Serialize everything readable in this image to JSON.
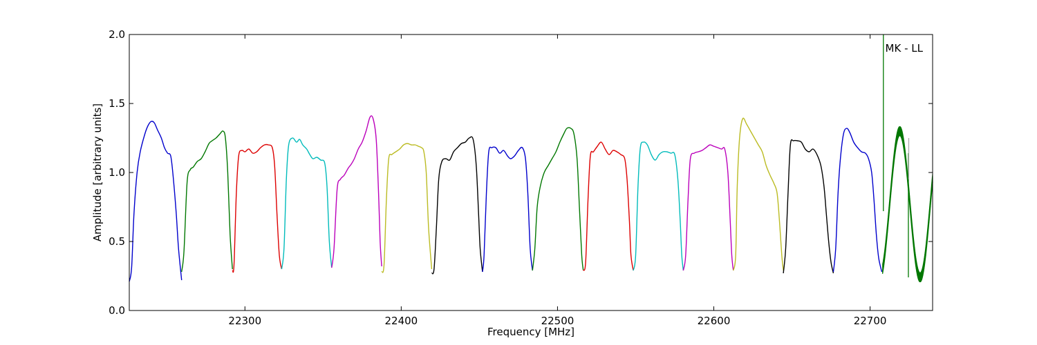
{
  "chart_data": {
    "type": "line",
    "title": "",
    "xlabel": "Frequency [MHz]",
    "ylabel": "Amplitude [arbitrary units]",
    "xlim": [
      22226,
      22740
    ],
    "ylim": [
      0.0,
      2.0
    ],
    "x_ticks": [
      "22300",
      "22400",
      "22500",
      "22600",
      "22700"
    ],
    "x_tick_values": [
      22300,
      22400,
      22500,
      22600,
      22700
    ],
    "y_ticks": [
      "0.0",
      "0.5",
      "1.0",
      "1.5",
      "2.0"
    ],
    "y_tick_values": [
      0.0,
      0.5,
      1.0,
      1.5,
      2.0
    ],
    "annotation": "MK - LL",
    "grid": false,
    "legend": "none",
    "series": [
      {
        "color": "#0000cc",
        "x": [
          22226.0,
          22227.5,
          22229.0,
          22231.0,
          22233.0,
          22236.0,
          22238.0,
          22240.0,
          22242.0,
          22244.0,
          22246.5,
          22248.5,
          22250.5,
          22252.5,
          22254.0,
          22256.0,
          22257.5,
          22259.5
        ],
        "y": [
          0.21,
          0.31,
          0.7,
          1.0,
          1.15,
          1.28,
          1.34,
          1.37,
          1.36,
          1.31,
          1.25,
          1.18,
          1.14,
          1.12,
          0.98,
          0.71,
          0.45,
          0.22
        ]
      },
      {
        "color": "#007700",
        "x": [
          22259.5,
          22261.0,
          22263.0,
          22265.0,
          22267.0,
          22269.5,
          22272.0,
          22274.5,
          22277.0,
          22279.0,
          22281.5,
          22284.0,
          22286.0,
          22287.5,
          22289.0,
          22290.5,
          22292.0
        ],
        "y": [
          0.28,
          0.43,
          0.93,
          1.02,
          1.04,
          1.08,
          1.1,
          1.15,
          1.21,
          1.23,
          1.25,
          1.28,
          1.3,
          1.25,
          1.0,
          0.55,
          0.3
        ]
      },
      {
        "color": "#dd0000",
        "x": [
          22292.0,
          22293.0,
          22294.5,
          22296.0,
          22298.0,
          22300.0,
          22302.5,
          22305.0,
          22307.5,
          22310.0,
          22312.5,
          22315.0,
          22317.5,
          22319.0,
          22320.5,
          22322.0,
          22323.5
        ],
        "y": [
          0.29,
          0.33,
          0.85,
          1.12,
          1.16,
          1.15,
          1.17,
          1.14,
          1.15,
          1.18,
          1.2,
          1.2,
          1.18,
          1.05,
          0.7,
          0.4,
          0.3
        ]
      },
      {
        "color": "#00bbbb",
        "x": [
          22323.5,
          22325.0,
          22326.5,
          22328.0,
          22330.5,
          22333.0,
          22335.0,
          22337.0,
          22339.5,
          22341.5,
          22343.5,
          22346.0,
          22348.5,
          22351.0,
          22352.5,
          22354.0,
          22355.5
        ],
        "y": [
          0.3,
          0.45,
          0.95,
          1.2,
          1.25,
          1.22,
          1.24,
          1.2,
          1.17,
          1.13,
          1.1,
          1.11,
          1.09,
          1.07,
          0.9,
          0.5,
          0.31
        ]
      },
      {
        "color": "#bb00bb",
        "x": [
          22355.5,
          22357.0,
          22359.0,
          22361.0,
          22363.5,
          22366.0,
          22368.0,
          22370.0,
          22372.5,
          22375.0,
          22377.5,
          22380.0,
          22382.0,
          22384.0,
          22385.5,
          22386.5,
          22387.5
        ],
        "y": [
          0.31,
          0.45,
          0.88,
          0.95,
          0.98,
          1.03,
          1.06,
          1.1,
          1.17,
          1.22,
          1.3,
          1.4,
          1.39,
          1.24,
          0.85,
          0.5,
          0.32
        ]
      },
      {
        "color": "#bbbb22",
        "x": [
          22387.5,
          22389.0,
          22390.5,
          22392.0,
          22394.0,
          22396.5,
          22399.0,
          22401.5,
          22404.0,
          22406.5,
          22409.0,
          22411.0,
          22413.0,
          22414.5,
          22416.0,
          22417.5,
          22419.5
        ],
        "y": [
          0.28,
          0.33,
          0.8,
          1.1,
          1.13,
          1.15,
          1.17,
          1.2,
          1.21,
          1.2,
          1.2,
          1.19,
          1.18,
          1.15,
          1.0,
          0.6,
          0.3
        ]
      },
      {
        "color": "#000000",
        "x": [
          22419.5,
          22421.0,
          22422.5,
          22424.0,
          22426.0,
          22428.5,
          22431.0,
          22433.5,
          22436.0,
          22438.5,
          22441.0,
          22443.5,
          22446.0,
          22448.0,
          22449.5,
          22450.5,
          22452.0
        ],
        "y": [
          0.27,
          0.3,
          0.6,
          0.95,
          1.08,
          1.1,
          1.09,
          1.15,
          1.18,
          1.21,
          1.22,
          1.25,
          1.24,
          1.05,
          0.7,
          0.45,
          0.28
        ]
      },
      {
        "color": "#0000cc",
        "x": [
          22452.0,
          22453.0,
          22454.5,
          22456.0,
          22458.0,
          22460.5,
          22463.0,
          22465.5,
          22468.0,
          22470.0,
          22472.5,
          22475.0,
          22477.5,
          22479.5,
          22481.0,
          22482.5,
          22484.0
        ],
        "y": [
          0.28,
          0.4,
          0.85,
          1.15,
          1.18,
          1.18,
          1.14,
          1.16,
          1.12,
          1.1,
          1.12,
          1.16,
          1.18,
          1.1,
          0.85,
          0.45,
          0.29
        ]
      },
      {
        "color": "#007700",
        "x": [
          22484.0,
          22485.5,
          22487.0,
          22489.0,
          22491.5,
          22494.0,
          22496.5,
          22499.0,
          22501.5,
          22504.0,
          22506.0,
          22508.5,
          22510.5,
          22512.5,
          22514.0,
          22515.5,
          22516.5
        ],
        "y": [
          0.29,
          0.45,
          0.75,
          0.9,
          1.0,
          1.05,
          1.1,
          1.15,
          1.22,
          1.28,
          1.32,
          1.32,
          1.28,
          1.1,
          0.75,
          0.4,
          0.29
        ]
      },
      {
        "color": "#dd0000",
        "x": [
          22516.5,
          22518.0,
          22519.5,
          22521.0,
          22523.0,
          22525.5,
          22528.0,
          22530.5,
          22533.0,
          22535.5,
          22538.0,
          22540.5,
          22543.0,
          22544.5,
          22546.0,
          22547.0,
          22548.5
        ],
        "y": [
          0.29,
          0.35,
          0.8,
          1.12,
          1.15,
          1.19,
          1.22,
          1.17,
          1.13,
          1.16,
          1.15,
          1.13,
          1.1,
          0.95,
          0.65,
          0.4,
          0.29
        ]
      },
      {
        "color": "#00bbbb",
        "x": [
          22548.5,
          22550.0,
          22551.5,
          22553.0,
          22555.0,
          22557.5,
          22560.0,
          22562.5,
          22565.0,
          22567.5,
          22570.0,
          22572.5,
          22575.0,
          22577.0,
          22578.5,
          22579.5,
          22580.5
        ],
        "y": [
          0.29,
          0.4,
          0.9,
          1.18,
          1.22,
          1.2,
          1.13,
          1.09,
          1.13,
          1.15,
          1.15,
          1.14,
          1.13,
          0.95,
          0.65,
          0.4,
          0.29
        ]
      },
      {
        "color": "#bb00bb",
        "x": [
          22580.5,
          22582.0,
          22583.5,
          22585.0,
          22587.5,
          22590.0,
          22592.5,
          22595.0,
          22597.5,
          22600.0,
          22602.5,
          22605.0,
          22607.0,
          22609.0,
          22610.5,
          22611.5,
          22612.5
        ],
        "y": [
          0.29,
          0.4,
          0.8,
          1.1,
          1.14,
          1.15,
          1.16,
          1.18,
          1.2,
          1.19,
          1.18,
          1.17,
          1.17,
          1.0,
          0.65,
          0.4,
          0.29
        ]
      },
      {
        "color": "#bbbb22",
        "x": [
          22612.5,
          22614.0,
          22615.0,
          22616.5,
          22618.5,
          22621.0,
          22623.5,
          22626.0,
          22628.5,
          22631.0,
          22633.5,
          22636.0,
          22638.5,
          22640.5,
          22642.0,
          22643.5,
          22644.5
        ],
        "y": [
          0.29,
          0.4,
          0.9,
          1.25,
          1.39,
          1.35,
          1.3,
          1.25,
          1.2,
          1.15,
          1.05,
          0.98,
          0.92,
          0.85,
          0.65,
          0.4,
          0.29
        ]
      },
      {
        "color": "#000000",
        "x": [
          22644.5,
          22646.0,
          22647.5,
          22649.0,
          22651.0,
          22653.5,
          22656.0,
          22658.5,
          22661.0,
          22663.5,
          22666.0,
          22668.5,
          22670.5,
          22672.0,
          22673.5,
          22675.0,
          22676.5
        ],
        "y": [
          0.27,
          0.45,
          0.85,
          1.2,
          1.23,
          1.23,
          1.22,
          1.17,
          1.15,
          1.17,
          1.13,
          1.05,
          0.9,
          0.7,
          0.5,
          0.35,
          0.27
        ]
      },
      {
        "color": "#0000cc",
        "x": [
          22676.5,
          22678.0,
          22679.5,
          22681.0,
          22683.0,
          22685.0,
          22687.0,
          22689.5,
          22692.0,
          22694.5,
          22697.0,
          22699.0,
          22701.0,
          22702.5,
          22704.0,
          22705.5,
          22707.5
        ],
        "y": [
          0.28,
          0.45,
          0.85,
          1.1,
          1.28,
          1.32,
          1.29,
          1.22,
          1.18,
          1.15,
          1.14,
          1.1,
          1.0,
          0.8,
          0.55,
          0.38,
          0.28
        ]
      }
    ],
    "fringe_series": {
      "color": "#007700",
      "x_start": 22708.0,
      "x_end": 22740,
      "center": 0.77,
      "amplitude": 0.53,
      "period": 26.0,
      "spike_x": 22708.5,
      "spike_y": [
        0.72,
        2.0
      ],
      "dip_x": 22724.5,
      "dip_y": [
        0.24,
        1.14
      ]
    },
    "gray_marker": {
      "color": "#aaaaaa",
      "x": 22724.5,
      "y": [
        0.95,
        1.25
      ]
    }
  }
}
